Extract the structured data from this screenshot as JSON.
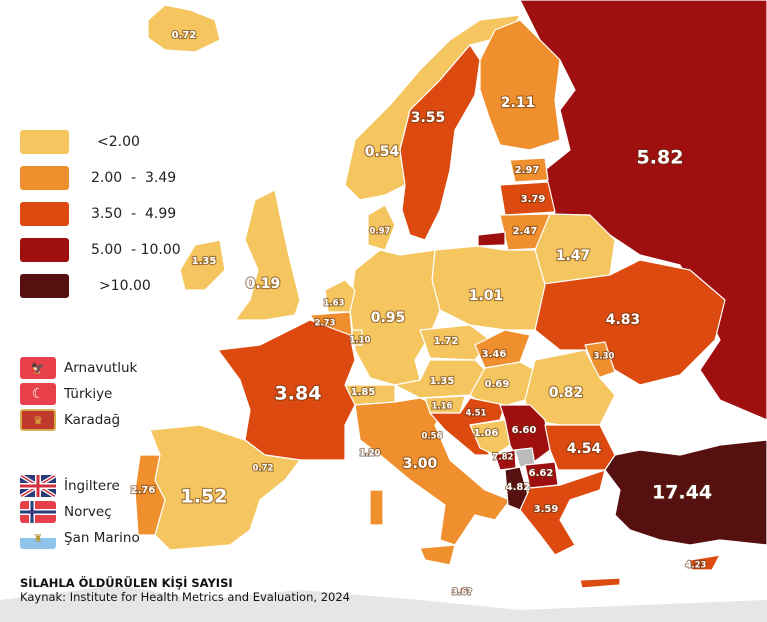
{
  "title": "SİLAHLA ÖLDÜRÜLEN KİŞİ SAYISI",
  "source": "Kaynak: Institute for Health Metrics and Evaluation, 2024",
  "legend": [
    {
      "label": "<2.00",
      "color": "#f5c660"
    },
    {
      "label": "2.00  -  3.49",
      "color": "#ef8f2e"
    },
    {
      "label": "3.50  -  4.99",
      "color": "#dc4a10"
    },
    {
      "label": "5.00  - 10.00",
      "color": "#a00f10"
    },
    {
      "label": ">10.00",
      "color": "#561010"
    }
  ],
  "flag_notes": [
    {
      "name": "Arnavutluk",
      "icon": "albania-flag-icon"
    },
    {
      "name": "Türkiye",
      "icon": "turkey-flag-icon"
    },
    {
      "name": "Karadağ",
      "icon": "montenegro-flag-icon"
    },
    {
      "name": "İngiltere",
      "icon": "uk-flag-icon"
    },
    {
      "name": "Norveç",
      "icon": "norway-flag-icon"
    },
    {
      "name": "Şan Marino",
      "icon": "san-marino-flag-icon"
    }
  ],
  "values": {
    "iceland": "0.72",
    "norway": "0.54",
    "sweden": "3.55",
    "finland": "2.11",
    "russia": "5.82",
    "estonia": "2.97",
    "latvia": "3.79",
    "lithuania": "2.47",
    "denmark": "0.97",
    "ireland": "1.35",
    "uk": "0.19",
    "belarus": "1.47",
    "netherlands": "1.63",
    "belgium": "2.73",
    "luxembourg": "1.10",
    "germany": "0.95",
    "poland": "1.01",
    "ukraine": "4.83",
    "czechia": "1.72",
    "slovakia": "3.46",
    "moldova": "3.30",
    "france": "3.84",
    "switzerland": "1.85",
    "austria": "1.35",
    "hungary": "0.69",
    "romania": "0.82",
    "slovenia": "1.16",
    "croatia": "4.51",
    "bosnia": "1.06",
    "serbia": "6.60",
    "san_marino": "0.56",
    "bulgaria": "4.54",
    "montenegro": "7.82",
    "north_macedonia": "6.62",
    "albania": "4.82",
    "greece": "3.59",
    "turkey": "17.44",
    "italy": "3.00",
    "monaco": "1.20",
    "andorra": "0.72",
    "portugal": "2.76",
    "spain": "1.52",
    "malta": "3.6?",
    "cyprus": "4.23"
  }
}
